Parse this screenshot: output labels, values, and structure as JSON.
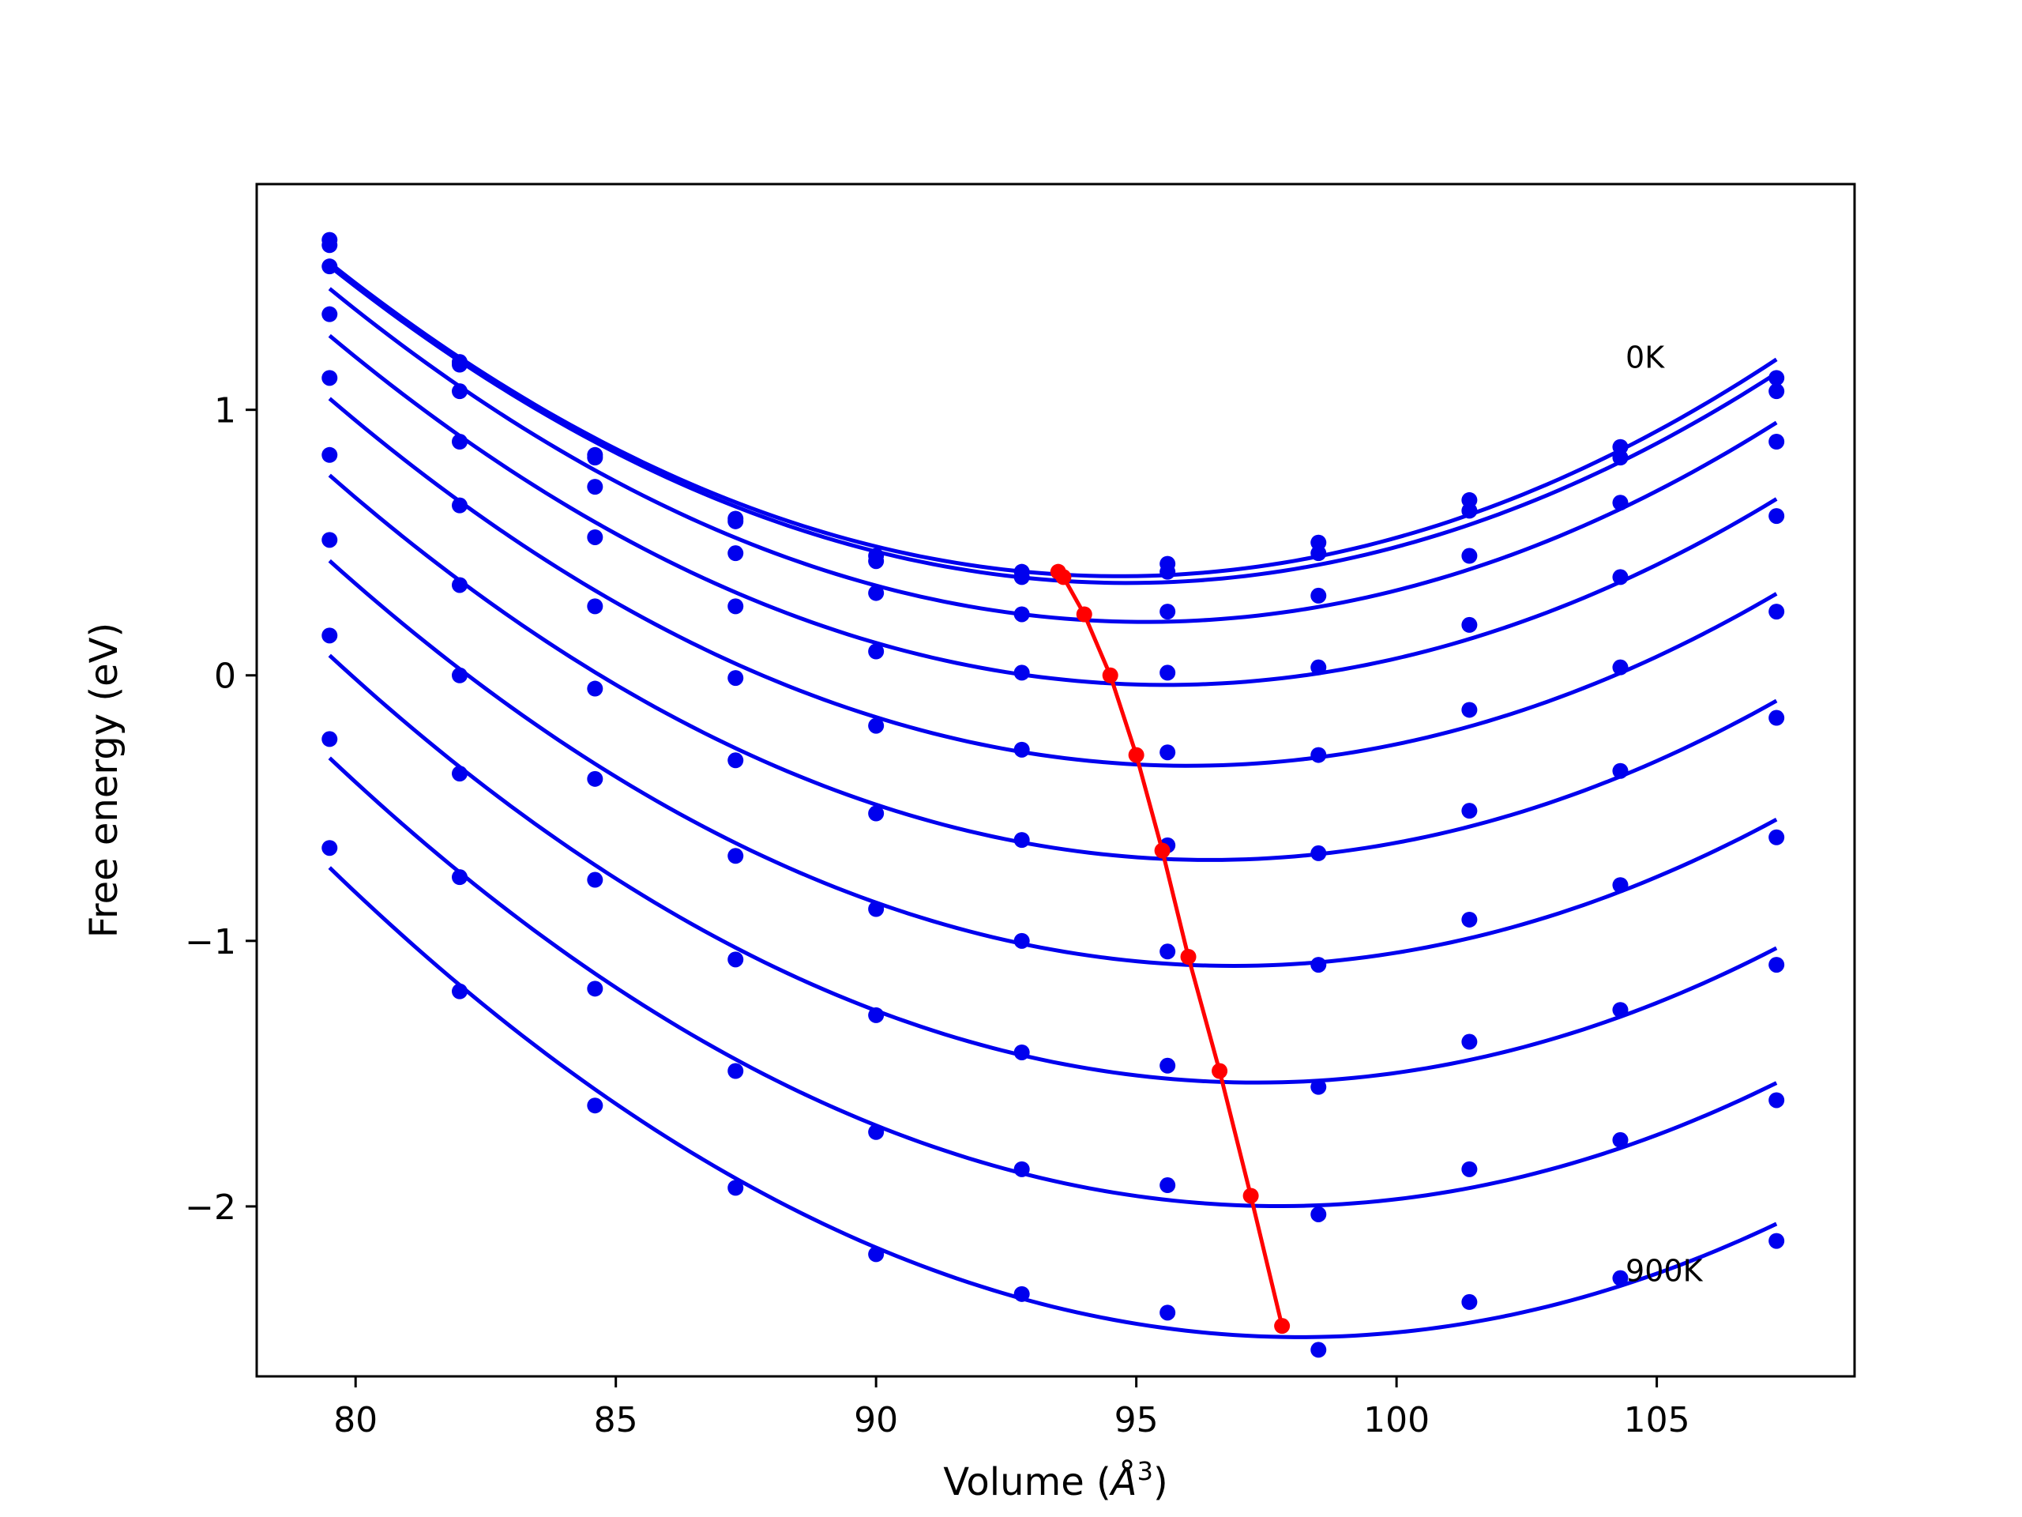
{
  "chart_data": {
    "type": "line",
    "xlabel": "Volume (",
    "xlabel_unit": "Å",
    "xlabel_sup": "3",
    "xlabel_close": ")",
    "ylabel": "Free energy (eV)",
    "xlim": [
      78.1,
      108.8
    ],
    "ylim": [
      -2.64,
      1.85
    ],
    "xticks": [
      80,
      85,
      90,
      95,
      100,
      105
    ],
    "xtick_labels": [
      "80",
      "85",
      "90",
      "95",
      "100",
      "105"
    ],
    "yticks": [
      -2,
      -1,
      0,
      1
    ],
    "ytick_labels": [
      "−2",
      "−1",
      "0",
      "1"
    ],
    "grid": false,
    "colors": {
      "curves": "#0000ee",
      "equilibrium": "#ff0000",
      "frame": "#000000"
    },
    "x": [
      79.5,
      82.0,
      84.6,
      87.3,
      90.0,
      92.8,
      95.6,
      98.5,
      101.4,
      104.3,
      107.3
    ],
    "series": [
      {
        "label": "0K",
        "y": [
          1.64,
          1.18,
          0.83,
          0.59,
          0.45,
          0.39,
          0.42,
          0.5,
          0.66,
          0.86,
          1.12
        ]
      },
      {
        "y": [
          1.62,
          1.17,
          0.82,
          0.58,
          0.43,
          0.37,
          0.39,
          0.46,
          0.62,
          0.82,
          1.07
        ]
      },
      {
        "y": [
          1.54,
          1.07,
          0.71,
          0.46,
          0.31,
          0.23,
          0.24,
          0.3,
          0.45,
          0.65,
          0.88
        ]
      },
      {
        "y": [
          1.36,
          0.88,
          0.52,
          0.26,
          0.09,
          0.01,
          0.01,
          0.03,
          0.19,
          0.37,
          0.6
        ]
      },
      {
        "y": [
          1.12,
          0.64,
          0.26,
          -0.01,
          -0.19,
          -0.28,
          -0.29,
          -0.3,
          -0.13,
          0.03,
          0.24
        ]
      },
      {
        "y": [
          0.83,
          0.34,
          -0.05,
          -0.32,
          -0.52,
          -0.62,
          -0.64,
          -0.67,
          -0.51,
          -0.36,
          -0.16
        ]
      },
      {
        "y": [
          0.51,
          0.0,
          -0.39,
          -0.68,
          -0.88,
          -1.0,
          -1.04,
          -1.09,
          -0.92,
          -0.79,
          -0.61
        ]
      },
      {
        "y": [
          0.15,
          -0.37,
          -0.77,
          -1.07,
          -1.28,
          -1.42,
          -1.47,
          -1.55,
          -1.38,
          -1.26,
          -1.09
        ]
      },
      {
        "y": [
          -0.24,
          -0.76,
          -1.18,
          -1.49,
          -1.72,
          -1.86,
          -1.92,
          -2.03,
          -1.86,
          -1.75,
          -1.6
        ]
      },
      {
        "label": "900K",
        "y": [
          -0.65,
          -1.19,
          -1.62,
          -1.93,
          -2.18,
          -2.33,
          -2.4,
          -2.54,
          -2.36,
          -2.27,
          -2.13
        ]
      }
    ],
    "equilibrium": {
      "x": [
        93.5,
        93.6,
        94.0,
        94.5,
        95.0,
        95.5,
        96.0,
        96.6,
        97.2,
        97.8
      ],
      "y": [
        0.39,
        0.37,
        0.23,
        0.0,
        -0.3,
        -0.66,
        -1.06,
        -1.49,
        -1.96,
        -2.45
      ]
    },
    "annotations": [
      {
        "text": "0K",
        "x": 104.4,
        "y": 1.2
      },
      {
        "text": "900K",
        "x": 104.4,
        "y": -2.24
      }
    ]
  }
}
